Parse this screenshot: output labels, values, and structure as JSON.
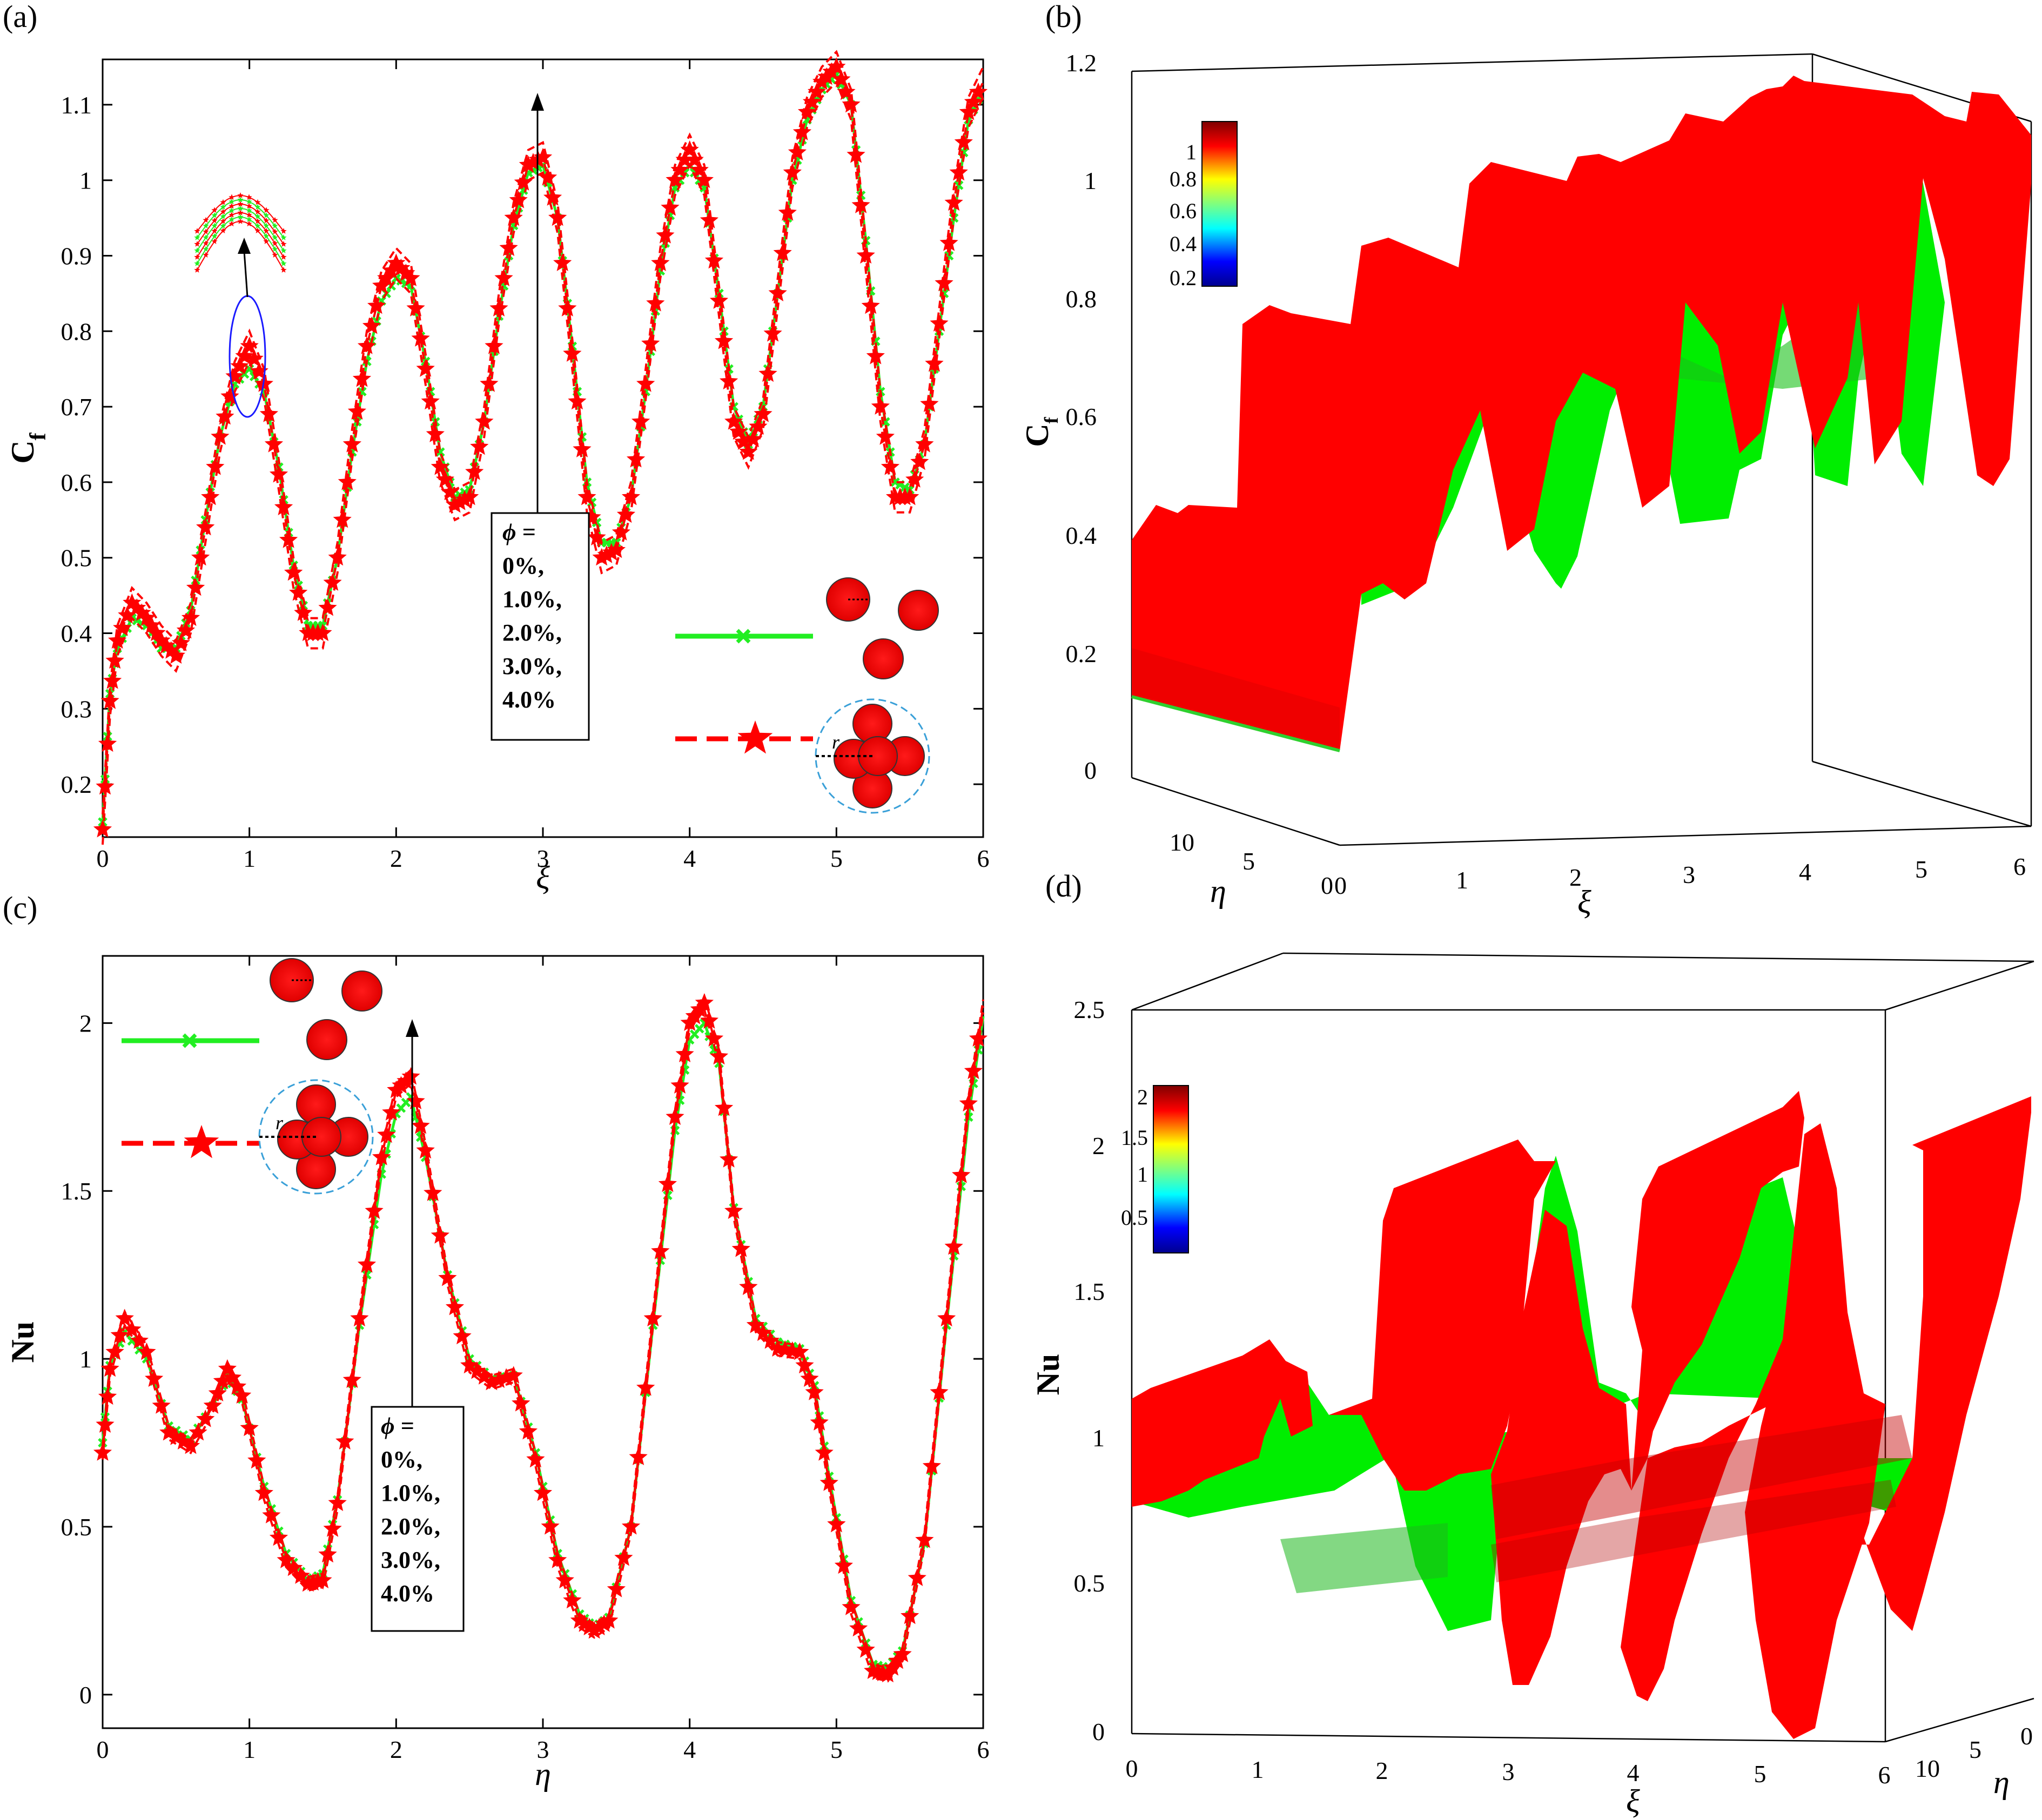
{
  "chart_data": [
    {
      "panel": "(a)",
      "type": "line",
      "xlabel": "ξ",
      "ylabel": "Cf",
      "xlim": [
        0,
        6
      ],
      "ylim": [
        0.13,
        1.16
      ],
      "xticks": [
        "0",
        "1",
        "2",
        "3",
        "4",
        "5",
        "6"
      ],
      "yticks": [
        "0.2",
        "0.3",
        "0.4",
        "0.5",
        "0.6",
        "0.7",
        "0.8",
        "0.9",
        "1",
        "1.1"
      ],
      "grid": false,
      "annotation": [
        "ϕ =",
        "0%,",
        "1.0%,",
        "2.0%,",
        "3.0%,",
        "4.0%"
      ],
      "legend": "legend drawn with particle-cluster icons (no text)",
      "series": [
        {
          "color": "#22ee22",
          "marker": "x",
          "x": [
            0,
            0.05,
            0.1,
            0.2,
            0.3,
            0.4,
            0.5,
            0.6,
            0.7,
            0.8,
            0.9,
            1.0,
            1.1,
            1.2,
            1.3,
            1.4,
            1.5,
            1.6,
            1.7,
            1.8,
            1.9,
            2.0,
            2.1,
            2.2,
            2.3,
            2.4,
            2.5,
            2.6,
            2.7,
            2.8,
            2.9,
            3.0,
            3.1,
            3.2,
            3.3,
            3.4,
            3.5,
            3.6,
            3.7,
            3.8,
            3.9,
            4.0,
            4.1,
            4.2,
            4.3,
            4.4,
            4.5,
            4.6,
            4.7,
            4.8,
            4.9,
            5.0,
            5.1,
            5.2,
            5.3,
            5.4,
            5.5,
            5.6,
            5.7,
            5.8,
            5.9,
            6.0
          ],
          "y": [
            0.15,
            0.32,
            0.38,
            0.42,
            0.41,
            0.38,
            0.38,
            0.43,
            0.55,
            0.66,
            0.73,
            0.75,
            0.72,
            0.62,
            0.49,
            0.41,
            0.41,
            0.5,
            0.64,
            0.76,
            0.84,
            0.87,
            0.86,
            0.76,
            0.64,
            0.58,
            0.59,
            0.68,
            0.82,
            0.94,
            1.01,
            1.02,
            0.95,
            0.78,
            0.6,
            0.52,
            0.52,
            0.58,
            0.72,
            0.88,
            0.99,
            1.02,
            0.99,
            0.85,
            0.7,
            0.65,
            0.7,
            0.85,
            1.0,
            1.08,
            1.12,
            1.14,
            1.1,
            0.92,
            0.72,
            0.6,
            0.59,
            0.65,
            0.8,
            0.95,
            1.08,
            1.12
          ]
        },
        {
          "color": "#ff0000",
          "marker": "star",
          "x": [
            0,
            0.05,
            0.1,
            0.2,
            0.3,
            0.4,
            0.5,
            0.6,
            0.7,
            0.8,
            0.9,
            1.0,
            1.1,
            1.2,
            1.3,
            1.4,
            1.5,
            1.6,
            1.7,
            1.8,
            1.9,
            2.0,
            2.1,
            2.2,
            2.3,
            2.4,
            2.5,
            2.6,
            2.7,
            2.8,
            2.9,
            3.0,
            3.1,
            3.2,
            3.3,
            3.4,
            3.5,
            3.6,
            3.7,
            3.8,
            3.9,
            4.0,
            4.1,
            4.2,
            4.3,
            4.4,
            4.5,
            4.6,
            4.7,
            4.8,
            4.9,
            5.0,
            5.1,
            5.2,
            5.3,
            5.4,
            5.5,
            5.6,
            5.7,
            5.8,
            5.9,
            6.0
          ],
          "y": [
            0.14,
            0.31,
            0.39,
            0.44,
            0.42,
            0.39,
            0.37,
            0.42,
            0.54,
            0.66,
            0.74,
            0.78,
            0.73,
            0.61,
            0.48,
            0.4,
            0.4,
            0.5,
            0.65,
            0.78,
            0.86,
            0.89,
            0.87,
            0.75,
            0.62,
            0.57,
            0.58,
            0.68,
            0.83,
            0.95,
            1.02,
            1.03,
            0.95,
            0.77,
            0.58,
            0.5,
            0.51,
            0.58,
            0.73,
            0.89,
            1.0,
            1.04,
            1.0,
            0.84,
            0.68,
            0.64,
            0.69,
            0.85,
            1.01,
            1.09,
            1.13,
            1.15,
            1.1,
            0.9,
            0.7,
            0.58,
            0.58,
            0.65,
            0.81,
            0.97,
            1.09,
            1.13
          ]
        }
      ]
    },
    {
      "panel": "(b)",
      "type": "surface",
      "xlabel": "ξ",
      "ylabel": "η",
      "zlabel": "Cf",
      "xticks": [
        "0",
        "1",
        "2",
        "3",
        "4",
        "5",
        "6"
      ],
      "yticks": [
        "0",
        "5",
        "10"
      ],
      "zticks": [
        "0",
        "0.2",
        "0.4",
        "0.6",
        "0.8",
        "1",
        "1.2"
      ],
      "colorbar_ticks": [
        "0.2",
        "0.4",
        "0.6",
        "0.8",
        "1"
      ],
      "surface_colors": [
        "#ff0000",
        "#00ee00"
      ]
    },
    {
      "panel": "(c)",
      "type": "line",
      "xlabel": "η",
      "ylabel": "Nu",
      "xlim": [
        0,
        6
      ],
      "ylim": [
        -0.1,
        2.2
      ],
      "xticks": [
        "0",
        "1",
        "2",
        "3",
        "4",
        "5",
        "6"
      ],
      "yticks": [
        "0",
        "0.5",
        "1",
        "1.5",
        "2"
      ],
      "grid": false,
      "annotation": [
        "ϕ =",
        "0%,",
        "1.0%,",
        "2.0%,",
        "3.0%,",
        "4.0%"
      ],
      "legend": "legend drawn with particle-cluster icons (no text)",
      "series": [
        {
          "color": "#22ee22",
          "marker": "x",
          "x": [
            0,
            0.05,
            0.15,
            0.3,
            0.45,
            0.6,
            0.75,
            0.85,
            0.95,
            1.1,
            1.25,
            1.4,
            1.5,
            1.6,
            1.75,
            1.9,
            2.0,
            2.1,
            2.2,
            2.35,
            2.5,
            2.65,
            2.8,
            2.95,
            3.1,
            3.25,
            3.35,
            3.45,
            3.6,
            3.75,
            3.9,
            4.0,
            4.1,
            4.2,
            4.3,
            4.45,
            4.6,
            4.75,
            4.85,
            4.95,
            5.1,
            5.25,
            5.35,
            5.45,
            5.6,
            5.75,
            5.9,
            6.0
          ],
          "y": [
            0.75,
            0.98,
            1.08,
            1.0,
            0.8,
            0.76,
            0.86,
            0.95,
            0.88,
            0.62,
            0.42,
            0.34,
            0.36,
            0.58,
            1.1,
            1.55,
            1.73,
            1.78,
            1.6,
            1.25,
            1.0,
            0.94,
            0.95,
            0.72,
            0.42,
            0.24,
            0.2,
            0.23,
            0.5,
            1.1,
            1.68,
            1.95,
            2.0,
            1.88,
            1.45,
            1.12,
            1.05,
            1.03,
            0.92,
            0.65,
            0.28,
            0.09,
            0.08,
            0.13,
            0.45,
            1.1,
            1.72,
            2.02
          ]
        },
        {
          "color": "#ff0000",
          "marker": "star",
          "x": [
            0,
            0.05,
            0.15,
            0.3,
            0.45,
            0.6,
            0.75,
            0.85,
            0.95,
            1.1,
            1.25,
            1.4,
            1.5,
            1.6,
            1.75,
            1.9,
            2.0,
            2.1,
            2.2,
            2.35,
            2.5,
            2.65,
            2.8,
            2.95,
            3.1,
            3.25,
            3.35,
            3.45,
            3.6,
            3.75,
            3.9,
            4.0,
            4.1,
            4.2,
            4.3,
            4.45,
            4.6,
            4.75,
            4.85,
            4.95,
            5.1,
            5.25,
            5.35,
            5.45,
            5.6,
            5.75,
            5.9,
            6.0
          ],
          "y": [
            0.72,
            0.97,
            1.12,
            1.02,
            0.78,
            0.74,
            0.86,
            0.97,
            0.89,
            0.6,
            0.4,
            0.33,
            0.34,
            0.57,
            1.12,
            1.6,
            1.8,
            1.84,
            1.62,
            1.24,
            0.98,
            0.93,
            0.95,
            0.7,
            0.4,
            0.22,
            0.19,
            0.22,
            0.5,
            1.12,
            1.72,
            2.0,
            2.06,
            1.9,
            1.44,
            1.1,
            1.03,
            1.02,
            0.9,
            0.63,
            0.26,
            0.07,
            0.06,
            0.12,
            0.46,
            1.12,
            1.76,
            2.05
          ]
        }
      ]
    },
    {
      "panel": "(d)",
      "type": "surface",
      "xlabel": "ξ",
      "ylabel": "η",
      "zlabel": "Nu",
      "xticks": [
        "0",
        "1",
        "2",
        "3",
        "4",
        "5",
        "6"
      ],
      "yticks": [
        "0",
        "5",
        "10"
      ],
      "zticks": [
        "0",
        "0.5",
        "1",
        "1.5",
        "2",
        "2.5"
      ],
      "colorbar_ticks": [
        "0.5",
        "1",
        "1.5",
        "2"
      ],
      "surface_colors": [
        "#ff0000",
        "#00ee00"
      ]
    }
  ]
}
